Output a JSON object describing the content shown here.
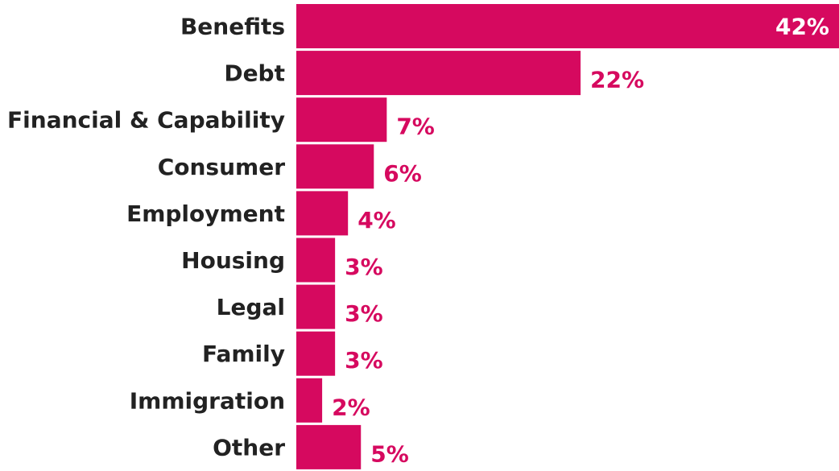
{
  "chart_data": {
    "type": "bar",
    "orientation": "horizontal",
    "categories": [
      "Benefits",
      "Debt",
      "Financial & Capability",
      "Consumer",
      "Employment",
      "Housing",
      "Legal",
      "Family",
      "Immigration",
      "Other"
    ],
    "values": [
      42,
      22,
      7,
      6,
      4,
      3,
      3,
      3,
      2,
      5
    ],
    "value_labels": [
      "42%",
      "22%",
      "7%",
      "6%",
      "4%",
      "3%",
      "3%",
      "3%",
      "2%",
      "5%"
    ],
    "unit": "%",
    "bar_color": "#d6095f",
    "inside_label_color": "#ffffff",
    "category_label_color": "#222222",
    "grid": false,
    "legend": "none"
  }
}
